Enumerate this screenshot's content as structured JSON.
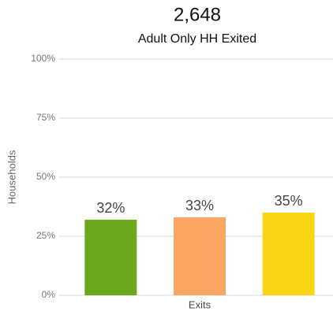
{
  "chart_data": {
    "type": "bar",
    "title": "2,648",
    "subtitle": "Adult Only HH Exited",
    "y_label": "Households",
    "x_label": "Exits",
    "categories": [
      null,
      null,
      null
    ],
    "values": [
      32,
      33,
      35
    ],
    "value_labels": [
      "32%",
      "33%",
      "35%"
    ],
    "colors": [
      "#6aa81e",
      "#f9a762",
      "#f8d616"
    ],
    "ylim": [
      0,
      100
    ],
    "yticks": [
      {
        "value": 0,
        "label": "0%"
      },
      {
        "value": 25,
        "label": "25%"
      },
      {
        "value": 50,
        "label": "50%"
      },
      {
        "value": 75,
        "label": "75%"
      },
      {
        "value": 100,
        "label": "100%"
      }
    ],
    "grid": true
  }
}
